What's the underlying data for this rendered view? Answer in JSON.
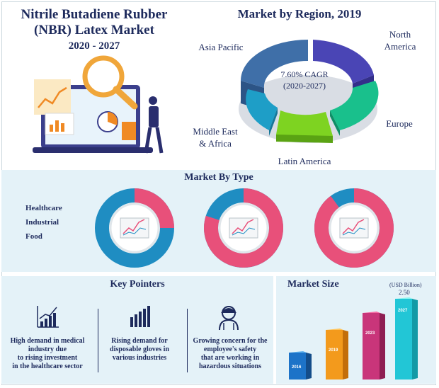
{
  "header": {
    "title_line1": "Nitrile Butadiene Rubber",
    "title_line2": "(NBR) Latex Market",
    "years": "2020 - 2027"
  },
  "region": {
    "title": "Market by Region, 2019",
    "cagr_line1": "7.60% CAGR",
    "cagr_line2": "(2020-2027)",
    "labels": {
      "north_america_1": "North",
      "north_america_2": "America",
      "asia_pacific": "Asia Pacific",
      "europe": "Europe",
      "mea_1": "Middle East",
      "mea_2": "& Africa",
      "latin_america": "Latin America"
    },
    "colors": {
      "north_america": "#4a45b5",
      "europe": "#19c08c",
      "latin_america": "#7ed321",
      "mea": "#1e9ec7",
      "asia_pacific": "#3f6fa8"
    }
  },
  "market_type": {
    "title": "Market By Type",
    "legend": [
      "Healthcare",
      "Industrial",
      "Food"
    ],
    "colors": {
      "healthcare": "#1f8dc2",
      "other": "#e8507a"
    },
    "shares_percent": [
      25,
      80,
      90
    ]
  },
  "key_pointers": {
    "title": "Key Pointers",
    "items": [
      {
        "icon": "bar-chart-growth-icon",
        "line1": "High demand in medical",
        "line2": "industry due",
        "line3": "to rising investment",
        "line4": "in the healthcare sector"
      },
      {
        "icon": "bar-chart-icon",
        "line1": "Rising demand for",
        "line2": "disposable gloves in",
        "line3": "various industries",
        "line4": ""
      },
      {
        "icon": "employee-safety-icon",
        "line1": "Growing concern for the",
        "line2": "employee's safety",
        "line3": "that are working in",
        "line4": "hazardous situations"
      }
    ]
  },
  "market_size": {
    "title": "Market Size",
    "unit": "(USD Billion)",
    "value_label": "2.50",
    "years": [
      "2016",
      "2019",
      "2023",
      "2027"
    ]
  }
}
